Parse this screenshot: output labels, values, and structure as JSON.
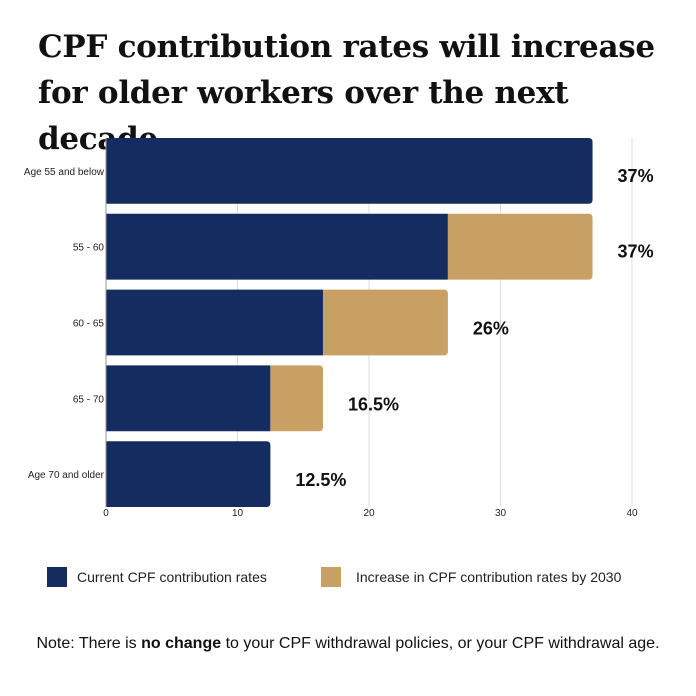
{
  "title": "CPF contribution rates will increase for older workers over the next decade",
  "colors": {
    "current": "#142c5f",
    "increase": "#c9a063",
    "grid": "#dddddd"
  },
  "chart_data": {
    "type": "bar",
    "orientation": "horizontal",
    "stacked": true,
    "categories": [
      "Age 55 and below",
      "55 - 60",
      "60 - 65",
      "65 - 70",
      "Age 70 and older"
    ],
    "series": [
      {
        "name": "Current CPF contribution rates",
        "values": [
          37,
          26,
          16.5,
          12.5,
          12.5
        ]
      },
      {
        "name": "Increase in CPF contribution rates by 2030",
        "values": [
          0,
          11,
          9.5,
          4,
          0
        ]
      }
    ],
    "data_labels": [
      "37%",
      "37%",
      "26%",
      "16.5%",
      "12.5%"
    ],
    "xlim": [
      0,
      40
    ],
    "xticks": [
      "0",
      "10",
      "20",
      "30",
      "40"
    ],
    "grid": true,
    "legend_position": "bottom"
  },
  "note": {
    "prefix": "Note: There is ",
    "bold": "no change",
    "suffix": " to your CPF withdrawal policies, or your CPF withdrawal age."
  }
}
